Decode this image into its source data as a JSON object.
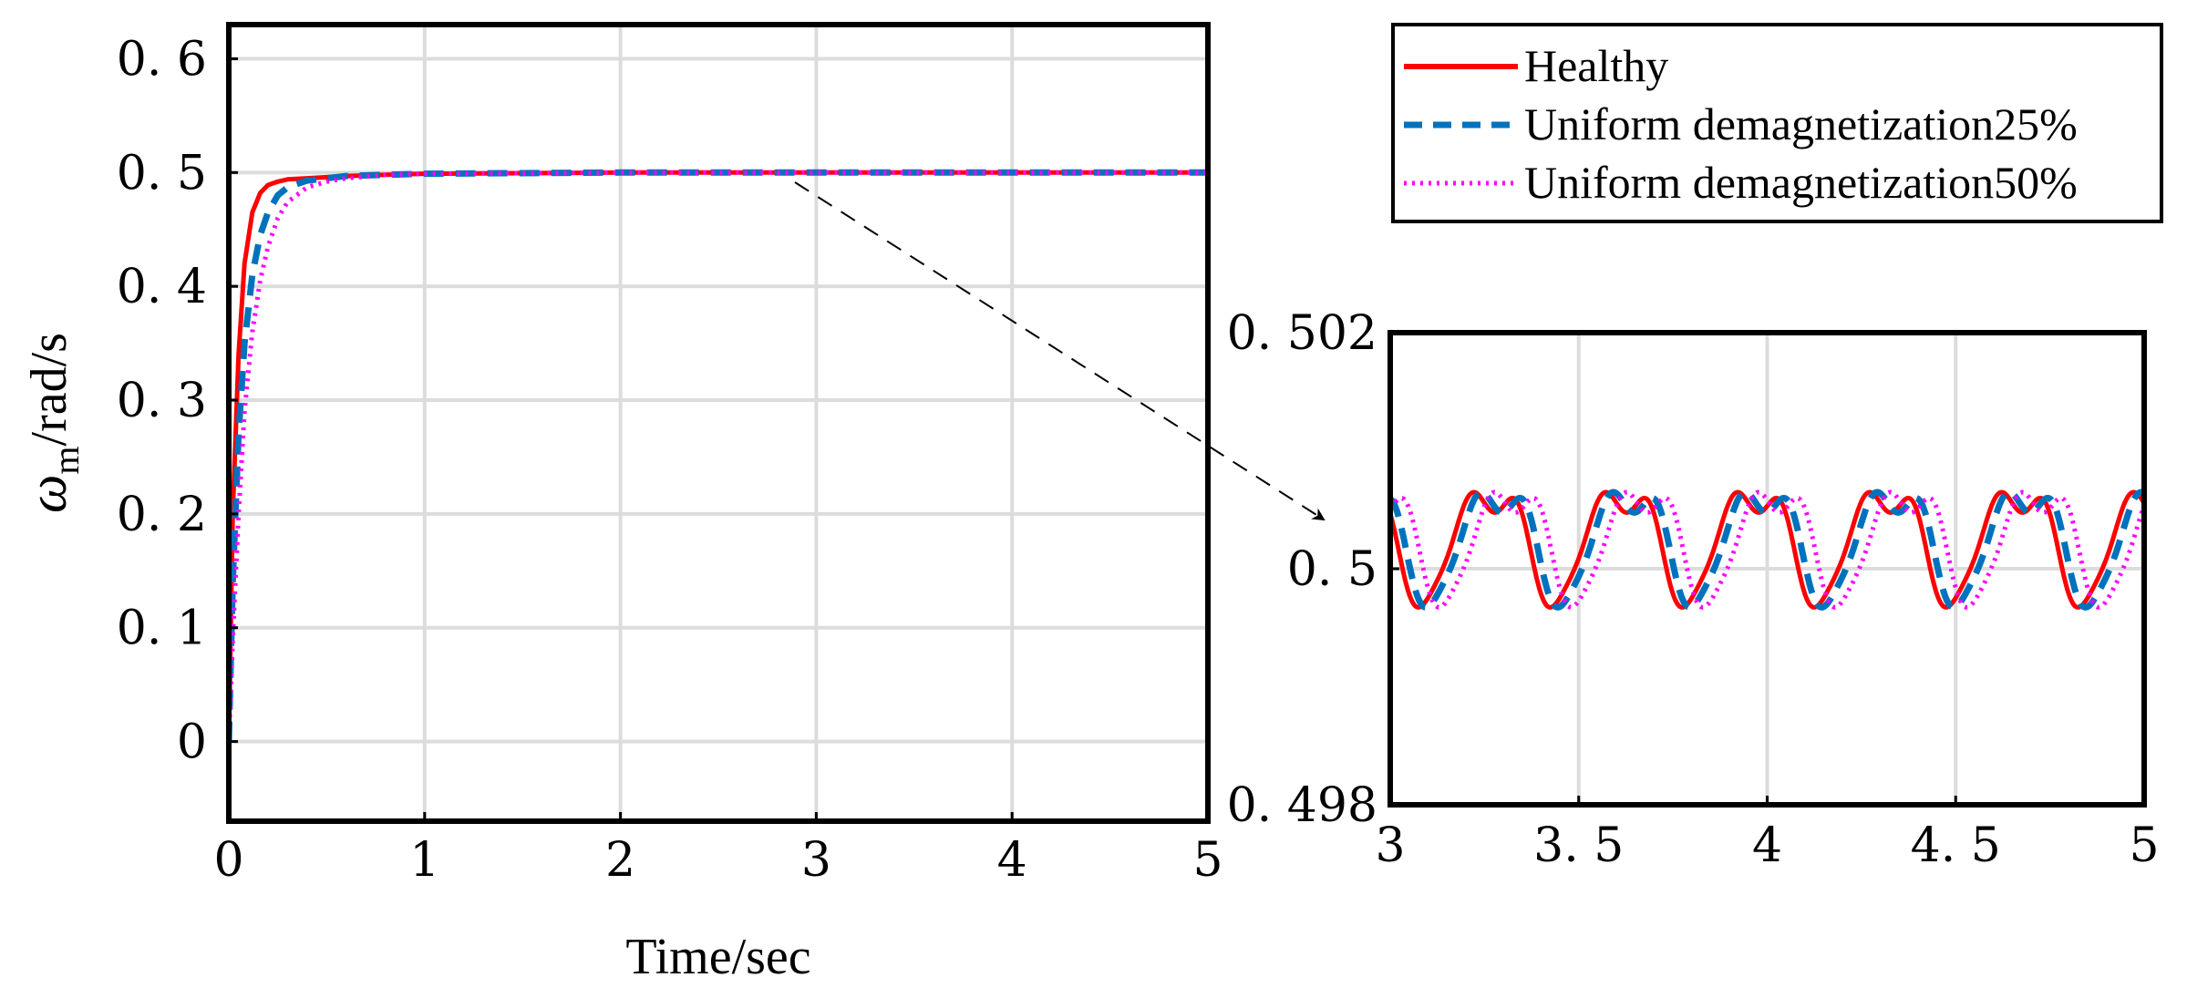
{
  "chart_data": [
    {
      "type": "line",
      "xlabel": "Time/sec",
      "ylabel_symbol": "ω",
      "ylabel_subscript": "m",
      "ylabel_unit": "/rad/s",
      "xlim": [
        0,
        5
      ],
      "ylim": [
        -0.07,
        0.63
      ],
      "xticks": [
        0,
        1,
        2,
        3,
        4,
        5
      ],
      "xtick_labels": [
        "0",
        "1",
        "2",
        "3",
        "4",
        "5"
      ],
      "yticks": [
        0,
        0.1,
        0.2,
        0.3,
        0.4,
        0.5,
        0.6
      ],
      "ytick_labels": [
        "0",
        "0. 1",
        "0. 2",
        "0. 3",
        "0. 4",
        "0. 5",
        "0. 6"
      ],
      "grid": true,
      "series": [
        {
          "name": "Healthy",
          "color": "#ff0000",
          "style": "solid",
          "x": [
            0,
            0.02,
            0.05,
            0.08,
            0.12,
            0.16,
            0.2,
            0.25,
            0.3,
            0.4,
            0.6,
            0.8,
            1.0,
            2.0,
            3.0,
            4.0,
            5.0
          ],
          "y": [
            0,
            0.2,
            0.34,
            0.42,
            0.465,
            0.482,
            0.489,
            0.492,
            0.494,
            0.495,
            0.497,
            0.498,
            0.499,
            0.5,
            0.5,
            0.5,
            0.5
          ]
        },
        {
          "name": "Uniform demagnetization25%",
          "color": "#0072bd",
          "style": "dashed",
          "x": [
            0,
            0.02,
            0.05,
            0.08,
            0.12,
            0.16,
            0.2,
            0.25,
            0.3,
            0.4,
            0.6,
            0.8,
            1.0,
            2.0,
            3.0,
            4.0,
            5.0
          ],
          "y": [
            0,
            0.14,
            0.27,
            0.35,
            0.41,
            0.445,
            0.465,
            0.48,
            0.487,
            0.493,
            0.497,
            0.498,
            0.499,
            0.5,
            0.5,
            0.5,
            0.5
          ]
        },
        {
          "name": "Uniform demagnetization50%",
          "color": "#ff00ff",
          "style": "dotted",
          "x": [
            0,
            0.02,
            0.05,
            0.08,
            0.12,
            0.16,
            0.2,
            0.25,
            0.3,
            0.4,
            0.5,
            0.6,
            0.8,
            1.0,
            2.0,
            3.0,
            4.0,
            5.0
          ],
          "y": [
            0,
            0.09,
            0.2,
            0.29,
            0.36,
            0.405,
            0.435,
            0.46,
            0.474,
            0.487,
            0.492,
            0.495,
            0.498,
            0.499,
            0.5,
            0.5,
            0.5,
            0.5
          ]
        }
      ]
    },
    {
      "type": "line",
      "xlim": [
        3,
        5
      ],
      "ylim": [
        0.498,
        0.502
      ],
      "xticks": [
        3,
        3.5,
        4,
        4.5,
        5
      ],
      "xtick_labels": [
        "3",
        "3. 5",
        "4",
        "4. 5",
        "5"
      ],
      "yticks": [
        0.498,
        0.5,
        0.502
      ],
      "ytick_labels": [
        "0. 498",
        "0. 5",
        "0. 502"
      ],
      "grid": true,
      "period": 0.35,
      "series": [
        {
          "name": "Healthy",
          "color": "#ff0000",
          "style": "solid",
          "phase": 0
        },
        {
          "name": "Uniform demagnetization25%",
          "color": "#0072bd",
          "style": "dashed",
          "phase": 0.02
        },
        {
          "name": "Uniform demagnetization50%",
          "color": "#ff00ff",
          "style": "dotted",
          "phase": 0.055
        }
      ]
    }
  ],
  "legend": {
    "location": "top-right",
    "entries": [
      "Healthy",
      "Uniform demagnetization25%",
      "Uniform demagnetization50%"
    ]
  }
}
